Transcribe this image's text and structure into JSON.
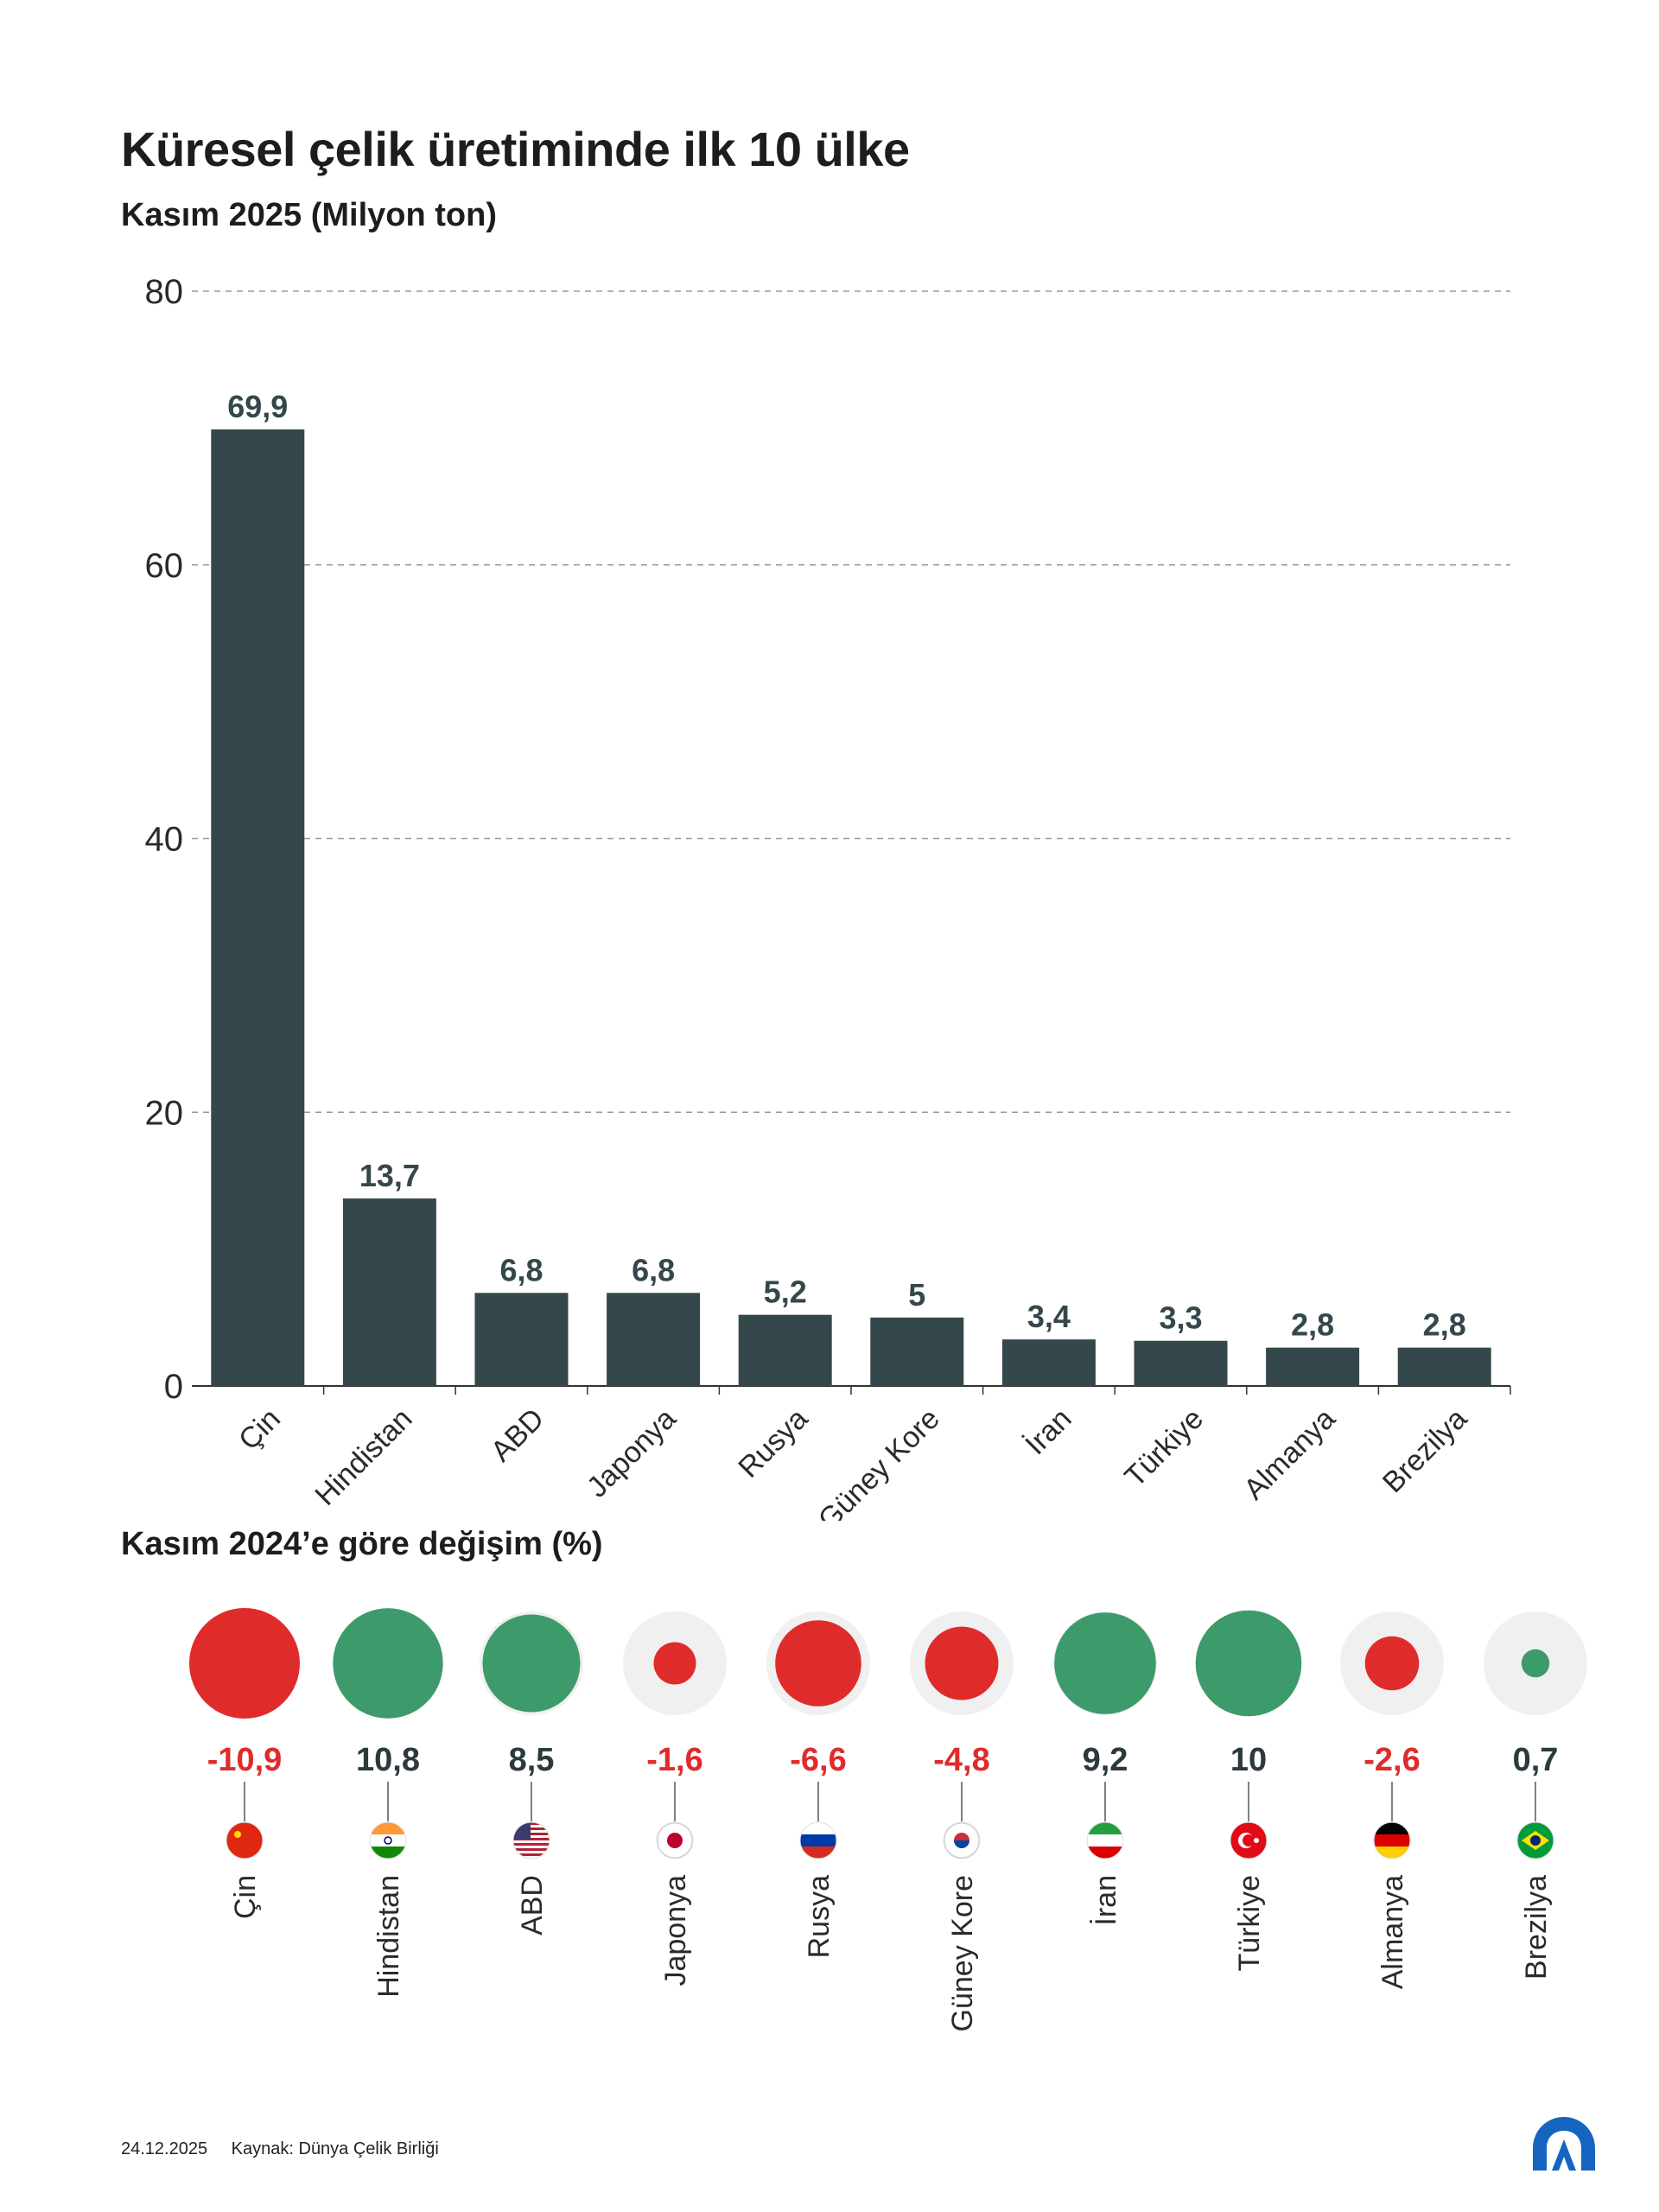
{
  "title": "Küresel çelik üretiminde ilk 10 ülke",
  "subtitle": "Kasım 2025 (Milyon ton)",
  "change_title": "Kasım 2024’e göre değişim (%)",
  "footer": {
    "date": "24.12.2025",
    "source": "Kaynak: Dünya Çelik Birliği"
  },
  "colors": {
    "bar": "#34474b",
    "positive": "#3d9a6a",
    "negative": "#e02b2b",
    "circle_bg": "#f0f0f0",
    "grid": "#999999"
  },
  "chart_data": [
    {
      "type": "bar",
      "title": "Kasım 2025 (Milyon ton)",
      "categories": [
        "Çin",
        "Hindistan",
        "ABD",
        "Japonya",
        "Rusya",
        "Güney Kore",
        "İran",
        "Türkiye",
        "Almanya",
        "Brezilya"
      ],
      "values": [
        69.9,
        13.7,
        6.8,
        6.8,
        5.2,
        5,
        3.4,
        3.3,
        2.8,
        2.8
      ],
      "value_labels": [
        "69,9",
        "13,7",
        "6,8",
        "6,8",
        "5,2",
        "5",
        "3,4",
        "3,3",
        "2,8",
        "2,8"
      ],
      "ylim": [
        0,
        80
      ],
      "yticks": [
        0,
        20,
        40,
        60,
        80
      ],
      "grid": true
    },
    {
      "type": "bubble",
      "title": "Kasım 2024’e göre değişim (%)",
      "categories": [
        "Çin",
        "Hindistan",
        "ABD",
        "Japonya",
        "Rusya",
        "Güney Kore",
        "İran",
        "Türkiye",
        "Almanya",
        "Brezilya"
      ],
      "values": [
        -10.9,
        10.8,
        8.5,
        -1.6,
        -6.6,
        -4.8,
        9.2,
        10,
        -2.6,
        0.7
      ],
      "value_labels": [
        "-10,9",
        "10,8",
        "8,5",
        "-1,6",
        "-6,6",
        "-4,8",
        "9,2",
        "10",
        "-2,6",
        "0,7"
      ],
      "flag_icons": [
        "china-flag-icon",
        "india-flag-icon",
        "usa-flag-icon",
        "japan-flag-icon",
        "russia-flag-icon",
        "south-korea-flag-icon",
        "iran-flag-icon",
        "turkey-flag-icon",
        "germany-flag-icon",
        "brazil-flag-icon"
      ]
    }
  ]
}
